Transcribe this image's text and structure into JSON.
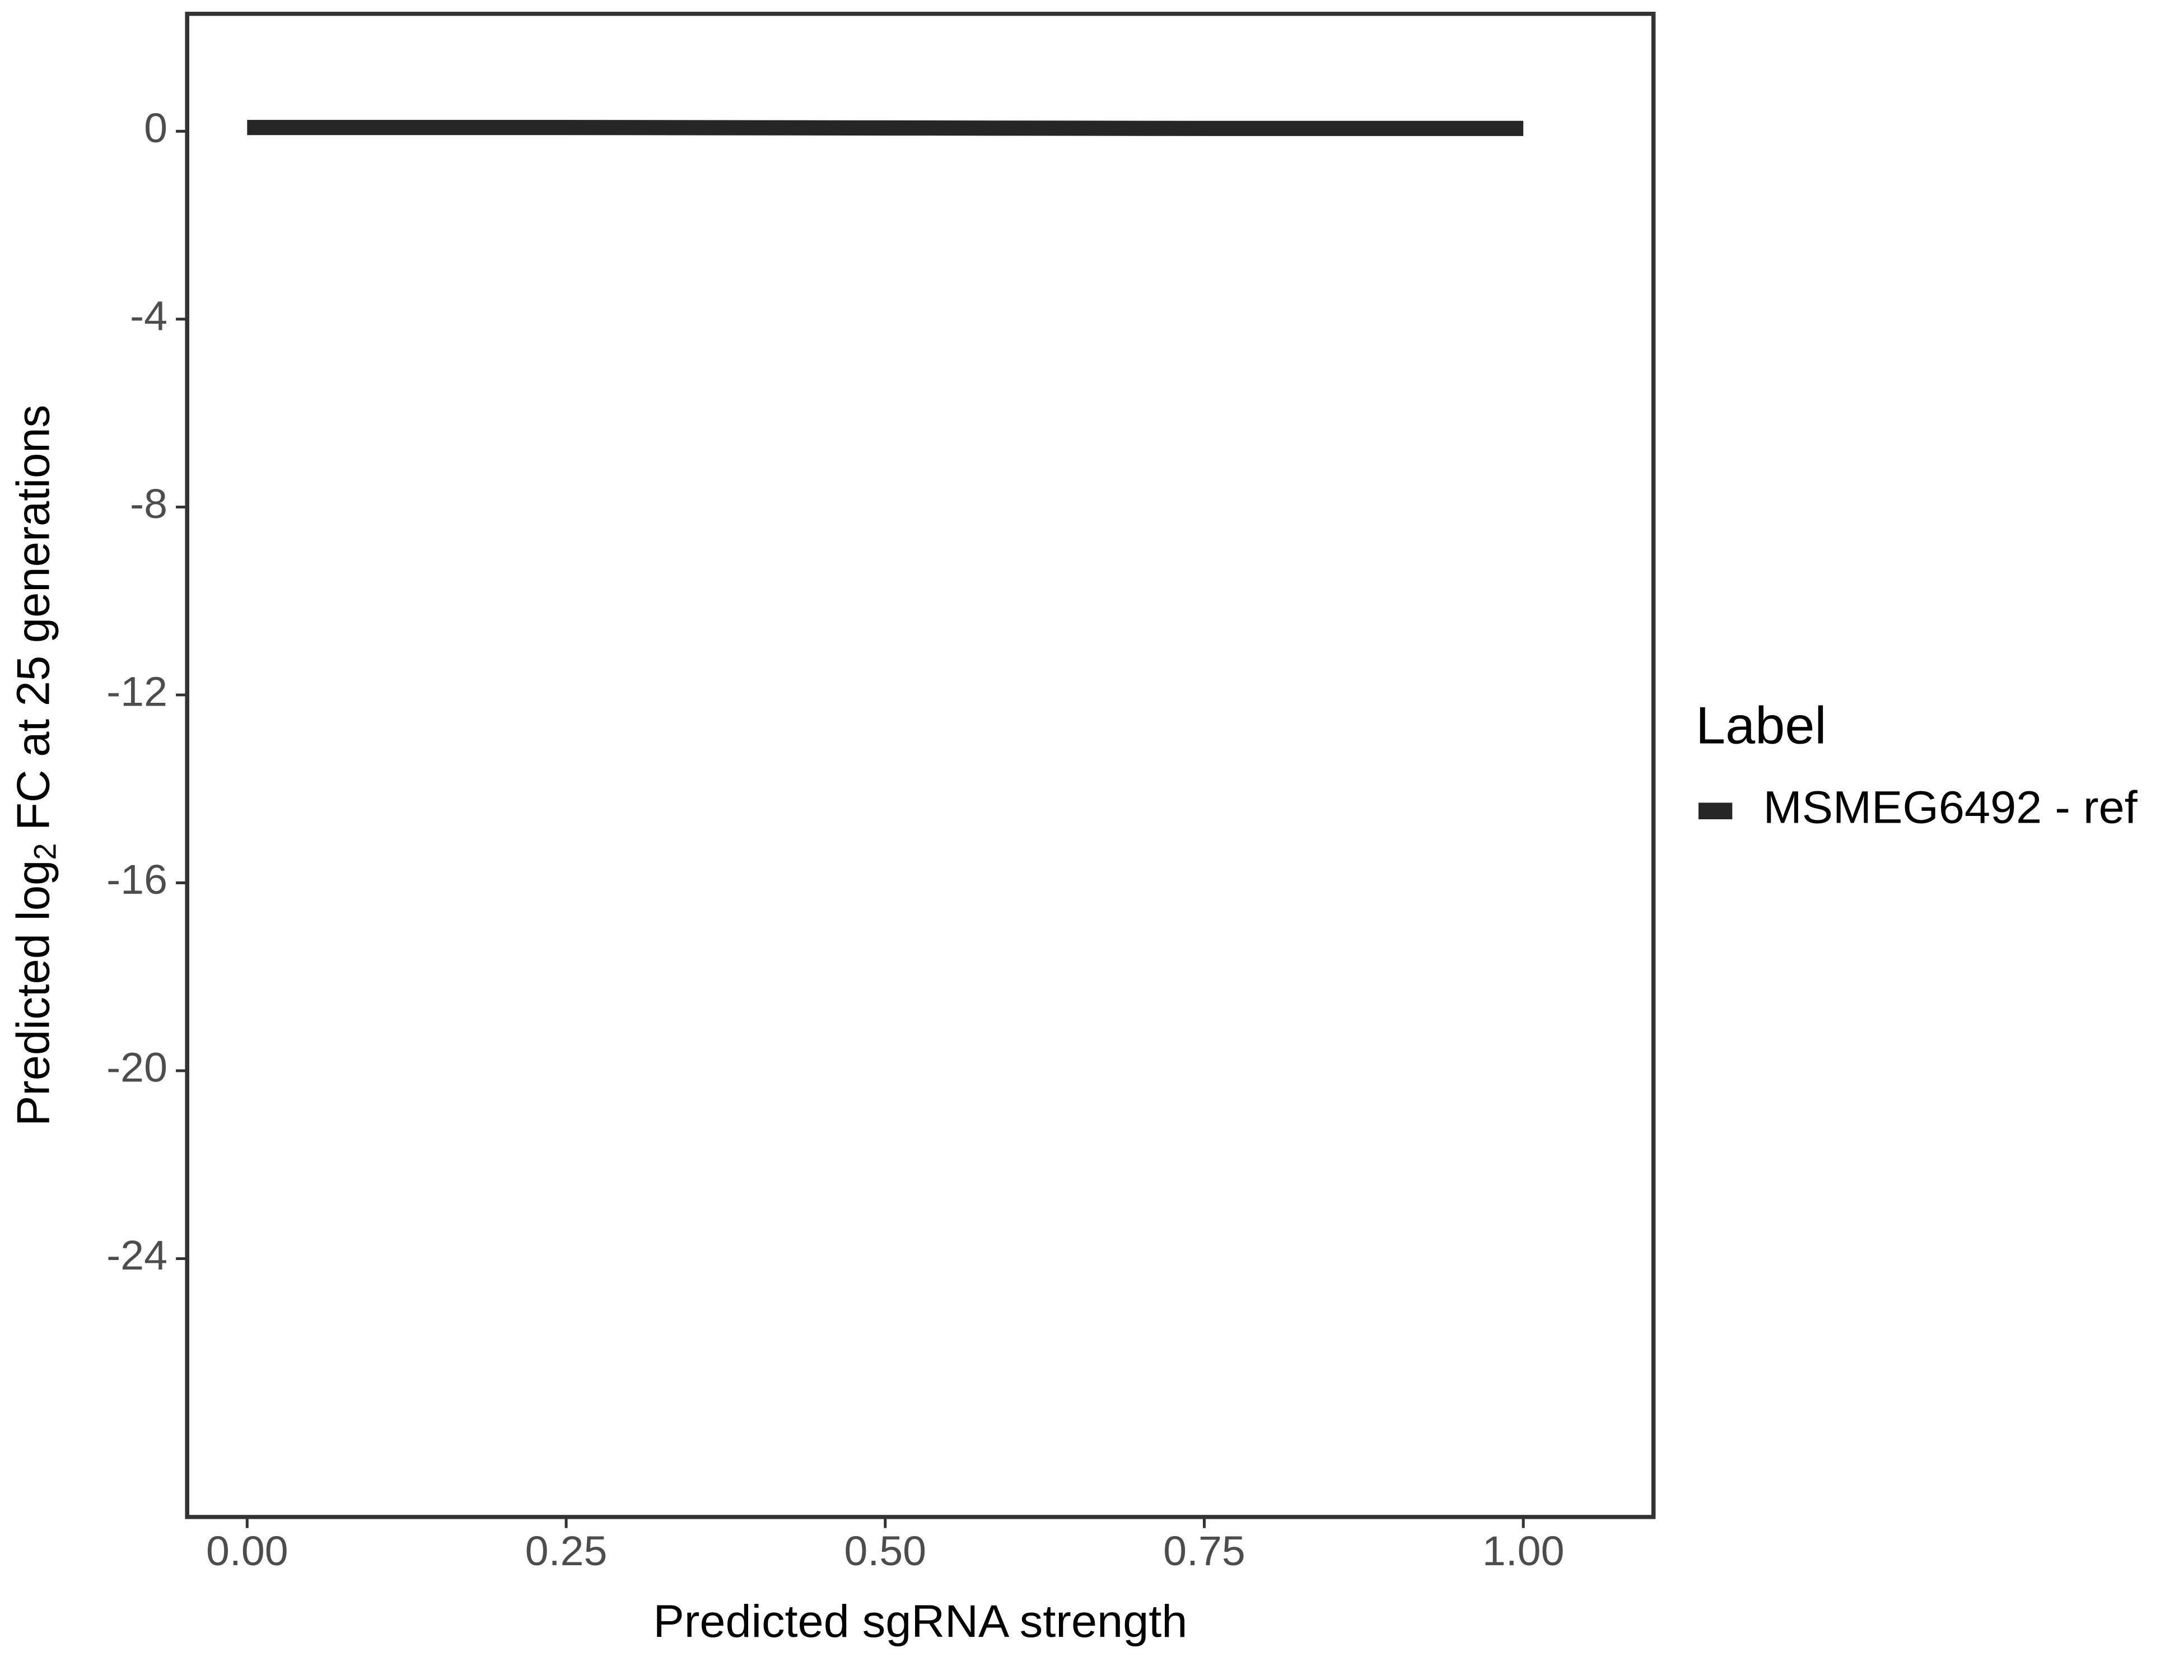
{
  "chart_data": {
    "type": "line",
    "x_label": "Predicted sgRNA strength",
    "y_label": [
      "Predicted  log",
      "2",
      " FC at 25 generations"
    ],
    "legend_title": "Label",
    "legend": "right",
    "grid": false,
    "x": [
      0,
      0.25,
      0.5,
      0.75,
      1
    ],
    "series": [
      {
        "name": "MSMEG6492 - ref",
        "color": "#262626",
        "values": [
          0.08,
          0.08,
          0.07,
          0.06,
          0.06
        ]
      }
    ],
    "xlim": [
      -0.047,
      1.102
    ],
    "ylim": [
      -29.5,
      2.5
    ],
    "xticks": [
      {
        "value": 0,
        "label": "0.00"
      },
      {
        "value": 0.25,
        "label": "0.25"
      },
      {
        "value": 0.5,
        "label": "0.50"
      },
      {
        "value": 0.75,
        "label": "0.75"
      },
      {
        "value": 1,
        "label": "1.00"
      }
    ],
    "yticks": [
      0,
      -4,
      -8,
      -12,
      -16,
      -20,
      -24
    ]
  }
}
